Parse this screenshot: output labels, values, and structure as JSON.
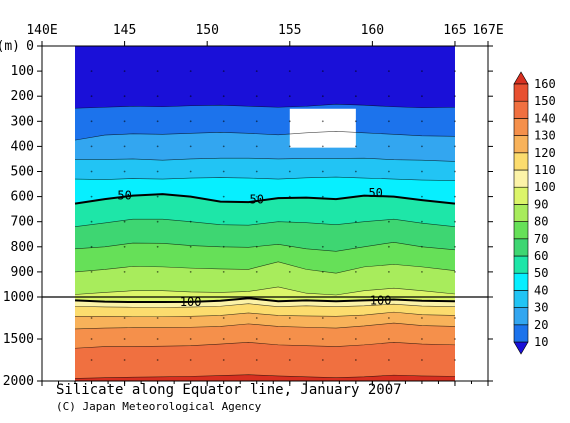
{
  "chart_data": {
    "type": "heatmap",
    "title": "Silicate along Equator line, January 2007",
    "credit": "(C) Japan Meteorological Agency",
    "x_axis": {
      "range": [
        140,
        167
      ],
      "data_extent": [
        142,
        165
      ],
      "ticks": [
        {
          "value": 140,
          "label": "140E"
        },
        {
          "value": 145,
          "label": "145"
        },
        {
          "value": 150,
          "label": "150"
        },
        {
          "value": 155,
          "label": "155"
        },
        {
          "value": 160,
          "label": "160"
        },
        {
          "value": 165,
          "label": "165"
        },
        {
          "value": 167,
          "label": "167E"
        }
      ]
    },
    "y_axis": {
      "unit_label": "(m)",
      "upper_range": [
        0,
        1000
      ],
      "lower_range": [
        1000,
        2000
      ],
      "ticks": [
        {
          "value": 0,
          "label": "0"
        },
        {
          "value": 100,
          "label": "100"
        },
        {
          "value": 200,
          "label": "200"
        },
        {
          "value": 300,
          "label": "300"
        },
        {
          "value": 400,
          "label": "400"
        },
        {
          "value": 500,
          "label": "500"
        },
        {
          "value": 600,
          "label": "600"
        },
        {
          "value": 700,
          "label": "700"
        },
        {
          "value": 800,
          "label": "800"
        },
        {
          "value": 900,
          "label": "900"
        },
        {
          "value": 1000,
          "label": "1000"
        },
        {
          "value": 1500,
          "label": "1500"
        },
        {
          "value": 2000,
          "label": "2000"
        }
      ]
    },
    "levels": [
      10,
      20,
      30,
      40,
      50,
      60,
      70,
      80,
      90,
      100,
      110,
      120,
      130,
      140,
      150,
      160
    ],
    "colors": [
      "#1a10d8",
      "#1c73ec",
      "#33a6f0",
      "#22c4f4",
      "#07efff",
      "#1ee6a8",
      "#3ed672",
      "#66e058",
      "#a8ec5c",
      "#dcf56a",
      "#fcf3a8",
      "#fcdc6e",
      "#f8b25a",
      "#f5904b",
      "#f07040",
      "#e85030",
      "#d83020"
    ],
    "colorbar_labels": [
      "160",
      "150",
      "140",
      "130",
      "120",
      "110",
      "100",
      "90",
      "80",
      "70",
      "60",
      "50",
      "40",
      "30",
      "20",
      "10"
    ],
    "isolines": [
      {
        "level": 10,
        "depths": [
          248,
          244,
          240,
          242,
          238,
          236,
          240,
          244,
          240,
          232,
          236,
          242,
          246,
          244
        ]
      },
      {
        "level": 20,
        "depths": [
          375,
          355,
          350,
          352,
          348,
          344,
          348,
          354,
          346,
          340,
          346,
          352,
          358,
          360
        ]
      },
      {
        "level": 30,
        "depths": [
          452,
          452,
          450,
          455,
          450,
          447,
          447,
          450,
          448,
          448,
          447,
          453,
          455,
          460
        ]
      },
      {
        "level": 40,
        "depths": [
          530,
          532,
          528,
          530,
          526,
          524,
          526,
          530,
          525,
          522,
          526,
          530,
          534,
          536
        ]
      },
      {
        "level": 50,
        "depths": [
          628,
          610,
          596,
          590,
          600,
          620,
          622,
          606,
          604,
          610,
          596,
          600,
          614,
          628
        ]
      },
      {
        "level": 60,
        "depths": [
          720,
          705,
          690,
          690,
          700,
          712,
          714,
          700,
          704,
          712,
          700,
          690,
          706,
          720
        ]
      },
      {
        "level": 70,
        "depths": [
          808,
          800,
          785,
          786,
          795,
          800,
          802,
          790,
          808,
          818,
          800,
          782,
          800,
          812
        ]
      },
      {
        "level": 80,
        "depths": [
          900,
          890,
          878,
          880,
          885,
          888,
          890,
          860,
          890,
          905,
          880,
          870,
          880,
          895
        ]
      },
      {
        "level": 90,
        "depths": [
          990,
          982,
          975,
          975,
          980,
          982,
          978,
          960,
          985,
          992,
          975,
          965,
          975,
          988
        ]
      },
      {
        "level": 100,
        "depths": [
          1040,
          1055,
          1060,
          1060,
          1058,
          1045,
          1015,
          1050,
          1040,
          1050,
          1040,
          1030,
          1045,
          1050
        ]
      },
      {
        "level": 110,
        "depths": [
          1110,
          1118,
          1122,
          1125,
          1120,
          1110,
          1080,
          1115,
          1105,
          1115,
          1105,
          1085,
          1108,
          1115
        ]
      },
      {
        "level": 120,
        "depths": [
          1230,
          1230,
          1235,
          1235,
          1230,
          1220,
          1190,
          1220,
          1225,
          1230,
          1215,
          1180,
          1210,
          1220
        ]
      },
      {
        "level": 130,
        "depths": [
          1380,
          1370,
          1365,
          1365,
          1360,
          1350,
          1320,
          1350,
          1360,
          1370,
          1345,
          1310,
          1340,
          1350
        ]
      },
      {
        "level": 140,
        "depths": [
          1610,
          1590,
          1590,
          1585,
          1580,
          1560,
          1540,
          1570,
          1580,
          1590,
          1570,
          1540,
          1560,
          1570
        ]
      },
      {
        "level": 150,
        "depths": [
          1970,
          1960,
          1955,
          1950,
          1945,
          1935,
          1925,
          1940,
          1950,
          1960,
          1950,
          1930,
          1940,
          1945
        ]
      }
    ],
    "isoline_x": [
      142,
      143.8,
      145.5,
      147.3,
      149,
      150.8,
      152.5,
      154.3,
      156,
      157.8,
      159.5,
      161.3,
      163,
      165
    ],
    "bold_levels": [
      50,
      100
    ],
    "contour_labels": [
      {
        "text": "50",
        "x": 145,
        "depth": 595
      },
      {
        "text": "50",
        "x": 153,
        "depth": 612
      },
      {
        "text": "50",
        "x": 160.2,
        "depth": 585
      },
      {
        "text": "100",
        "x": 149,
        "depth": 1060
      },
      {
        "text": "100",
        "x": 160.5,
        "depth": 1040
      }
    ],
    "missing_region": {
      "x": [
        155,
        159
      ],
      "depth": [
        250,
        405
      ]
    },
    "grid": "dotted",
    "legend": "colorbar-right"
  }
}
